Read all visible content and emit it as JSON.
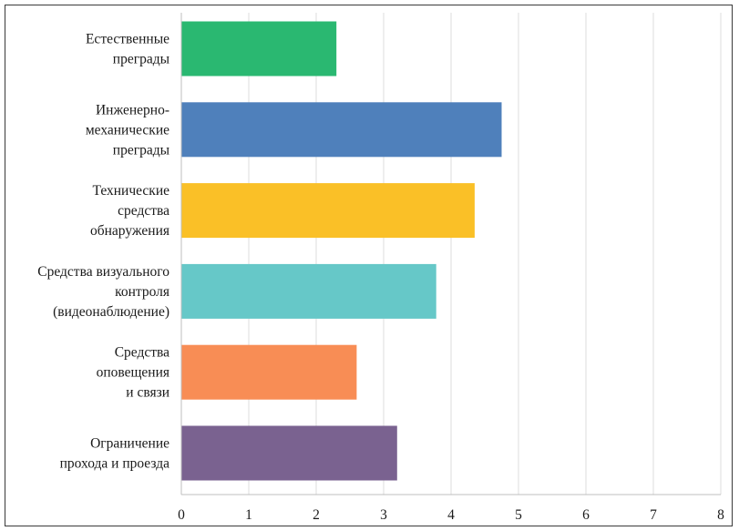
{
  "chart_data": {
    "type": "bar",
    "orientation": "horizontal",
    "title": "",
    "xlabel": "",
    "ylabel": "",
    "xlim": [
      0,
      8
    ],
    "xticks": [
      0,
      1,
      2,
      3,
      4,
      5,
      6,
      7,
      8
    ],
    "grid": true,
    "legend": "none",
    "categories": [
      [
        "Естественные",
        "преграды"
      ],
      [
        "Инженерно-",
        "механические",
        "преграды"
      ],
      [
        "Технические",
        "средства",
        "обнаружения"
      ],
      [
        "Средства визуального",
        "контроля",
        "(видеонаблюдение)"
      ],
      [
        "Средства",
        "оповещения",
        "и связи"
      ],
      [
        "Ограничение",
        "прохода и проезда"
      ]
    ],
    "values": [
      2.3,
      4.75,
      4.35,
      3.78,
      2.6,
      3.2
    ],
    "colors": [
      "#2ab871",
      "#4f80bb",
      "#fac027",
      "#66c8c8",
      "#f88d55",
      "#7a6290"
    ]
  }
}
